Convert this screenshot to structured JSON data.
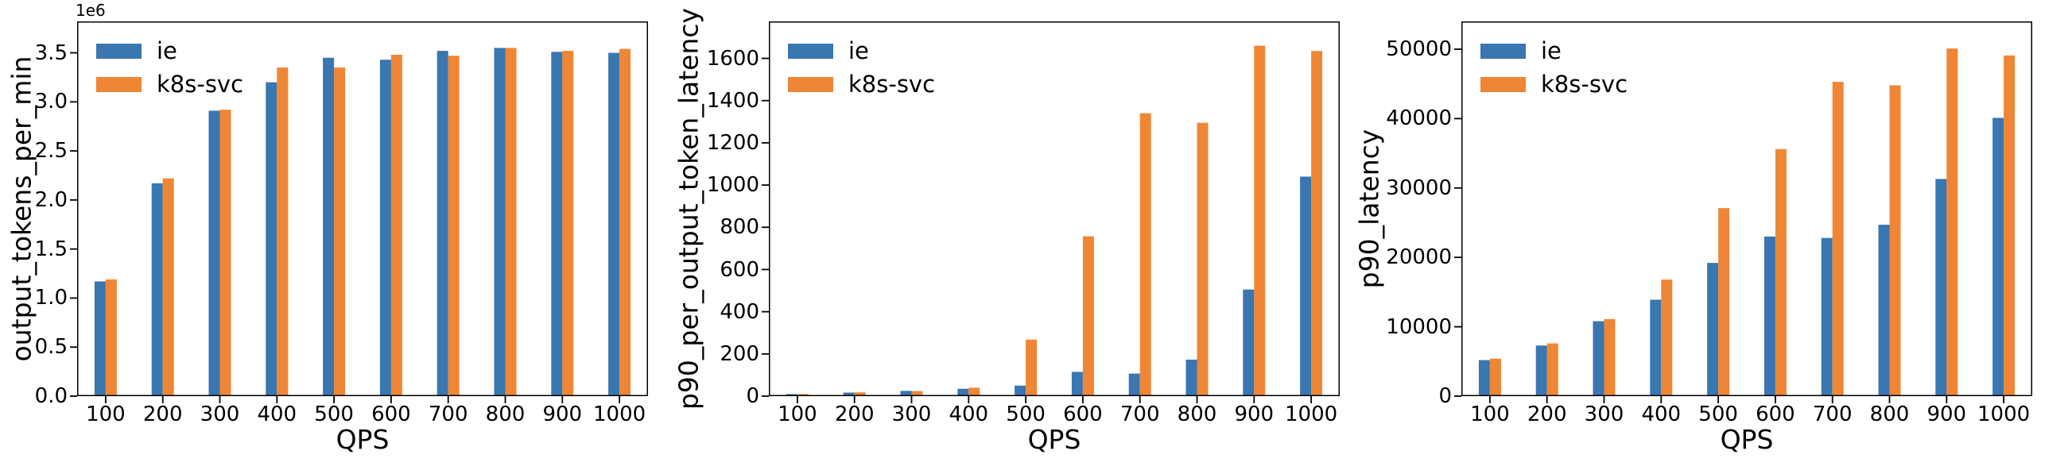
{
  "figure": {
    "background": "#ffffff",
    "series_colors": {
      "ie": "#3a76b0",
      "k8s-svc": "#ef8636"
    }
  },
  "chart_data": [
    {
      "type": "bar",
      "title": "",
      "ylabel": "output_tokens_per_min",
      "xlabel": "QPS",
      "offset_text": "1e6",
      "grid": false,
      "legend_position": "upper left",
      "categories": [
        "100",
        "200",
        "300",
        "400",
        "500",
        "600",
        "700",
        "800",
        "900",
        "1000"
      ],
      "ylim": [
        0,
        3820000
      ],
      "yticks": [
        0,
        500000,
        1000000,
        1500000,
        2000000,
        2500000,
        3000000,
        3500000
      ],
      "ytick_labels": [
        "0.0",
        "0.5",
        "1.0",
        "1.5",
        "2.0",
        "2.5",
        "3.0",
        "3.5"
      ],
      "series": [
        {
          "name": "ie",
          "color": "#3a76b0",
          "values": [
            1170000,
            2170000,
            2910000,
            3200000,
            3450000,
            3430000,
            3520000,
            3550000,
            3510000,
            3500000
          ]
        },
        {
          "name": "k8s-svc",
          "color": "#ef8636",
          "values": [
            1190000,
            2220000,
            2920000,
            3350000,
            3350000,
            3480000,
            3470000,
            3550000,
            3520000,
            3540000
          ]
        }
      ]
    },
    {
      "type": "bar",
      "title": "",
      "ylabel": "p90_per_output_token_latency",
      "xlabel": "QPS",
      "offset_text": "",
      "grid": false,
      "legend_position": "upper left",
      "categories": [
        "100",
        "200",
        "300",
        "400",
        "500",
        "600",
        "700",
        "800",
        "900",
        "1000"
      ],
      "ylim": [
        0,
        1775
      ],
      "yticks": [
        0,
        200,
        400,
        600,
        800,
        1000,
        1200,
        1400,
        1600
      ],
      "ytick_labels": [
        "0",
        "200",
        "400",
        "600",
        "800",
        "1000",
        "1200",
        "1400",
        "1600"
      ],
      "series": [
        {
          "name": "ie",
          "color": "#3a76b0",
          "values": [
            10,
            17,
            25,
            35,
            50,
            115,
            107,
            173,
            505,
            1040
          ]
        },
        {
          "name": "k8s-svc",
          "color": "#ef8636",
          "values": [
            10,
            18,
            24,
            40,
            268,
            757,
            1340,
            1295,
            1660,
            1635
          ]
        }
      ]
    },
    {
      "type": "bar",
      "title": "",
      "ylabel": "p90_latency",
      "xlabel": "QPS",
      "offset_text": "",
      "grid": false,
      "legend_position": "upper left",
      "categories": [
        "100",
        "200",
        "300",
        "400",
        "500",
        "600",
        "700",
        "800",
        "900",
        "1000"
      ],
      "ylim": [
        0,
        54000
      ],
      "yticks": [
        0,
        10000,
        20000,
        30000,
        40000,
        50000
      ],
      "ytick_labels": [
        "0",
        "10000",
        "20000",
        "30000",
        "40000",
        "50000"
      ],
      "series": [
        {
          "name": "ie",
          "color": "#3a76b0",
          "values": [
            5200,
            7300,
            10800,
            13900,
            19200,
            23000,
            22800,
            24700,
            31300,
            40100
          ]
        },
        {
          "name": "k8s-svc",
          "color": "#ef8636",
          "values": [
            5400,
            7600,
            11100,
            16800,
            27100,
            35600,
            45300,
            44800,
            50100,
            49100
          ]
        }
      ]
    }
  ]
}
